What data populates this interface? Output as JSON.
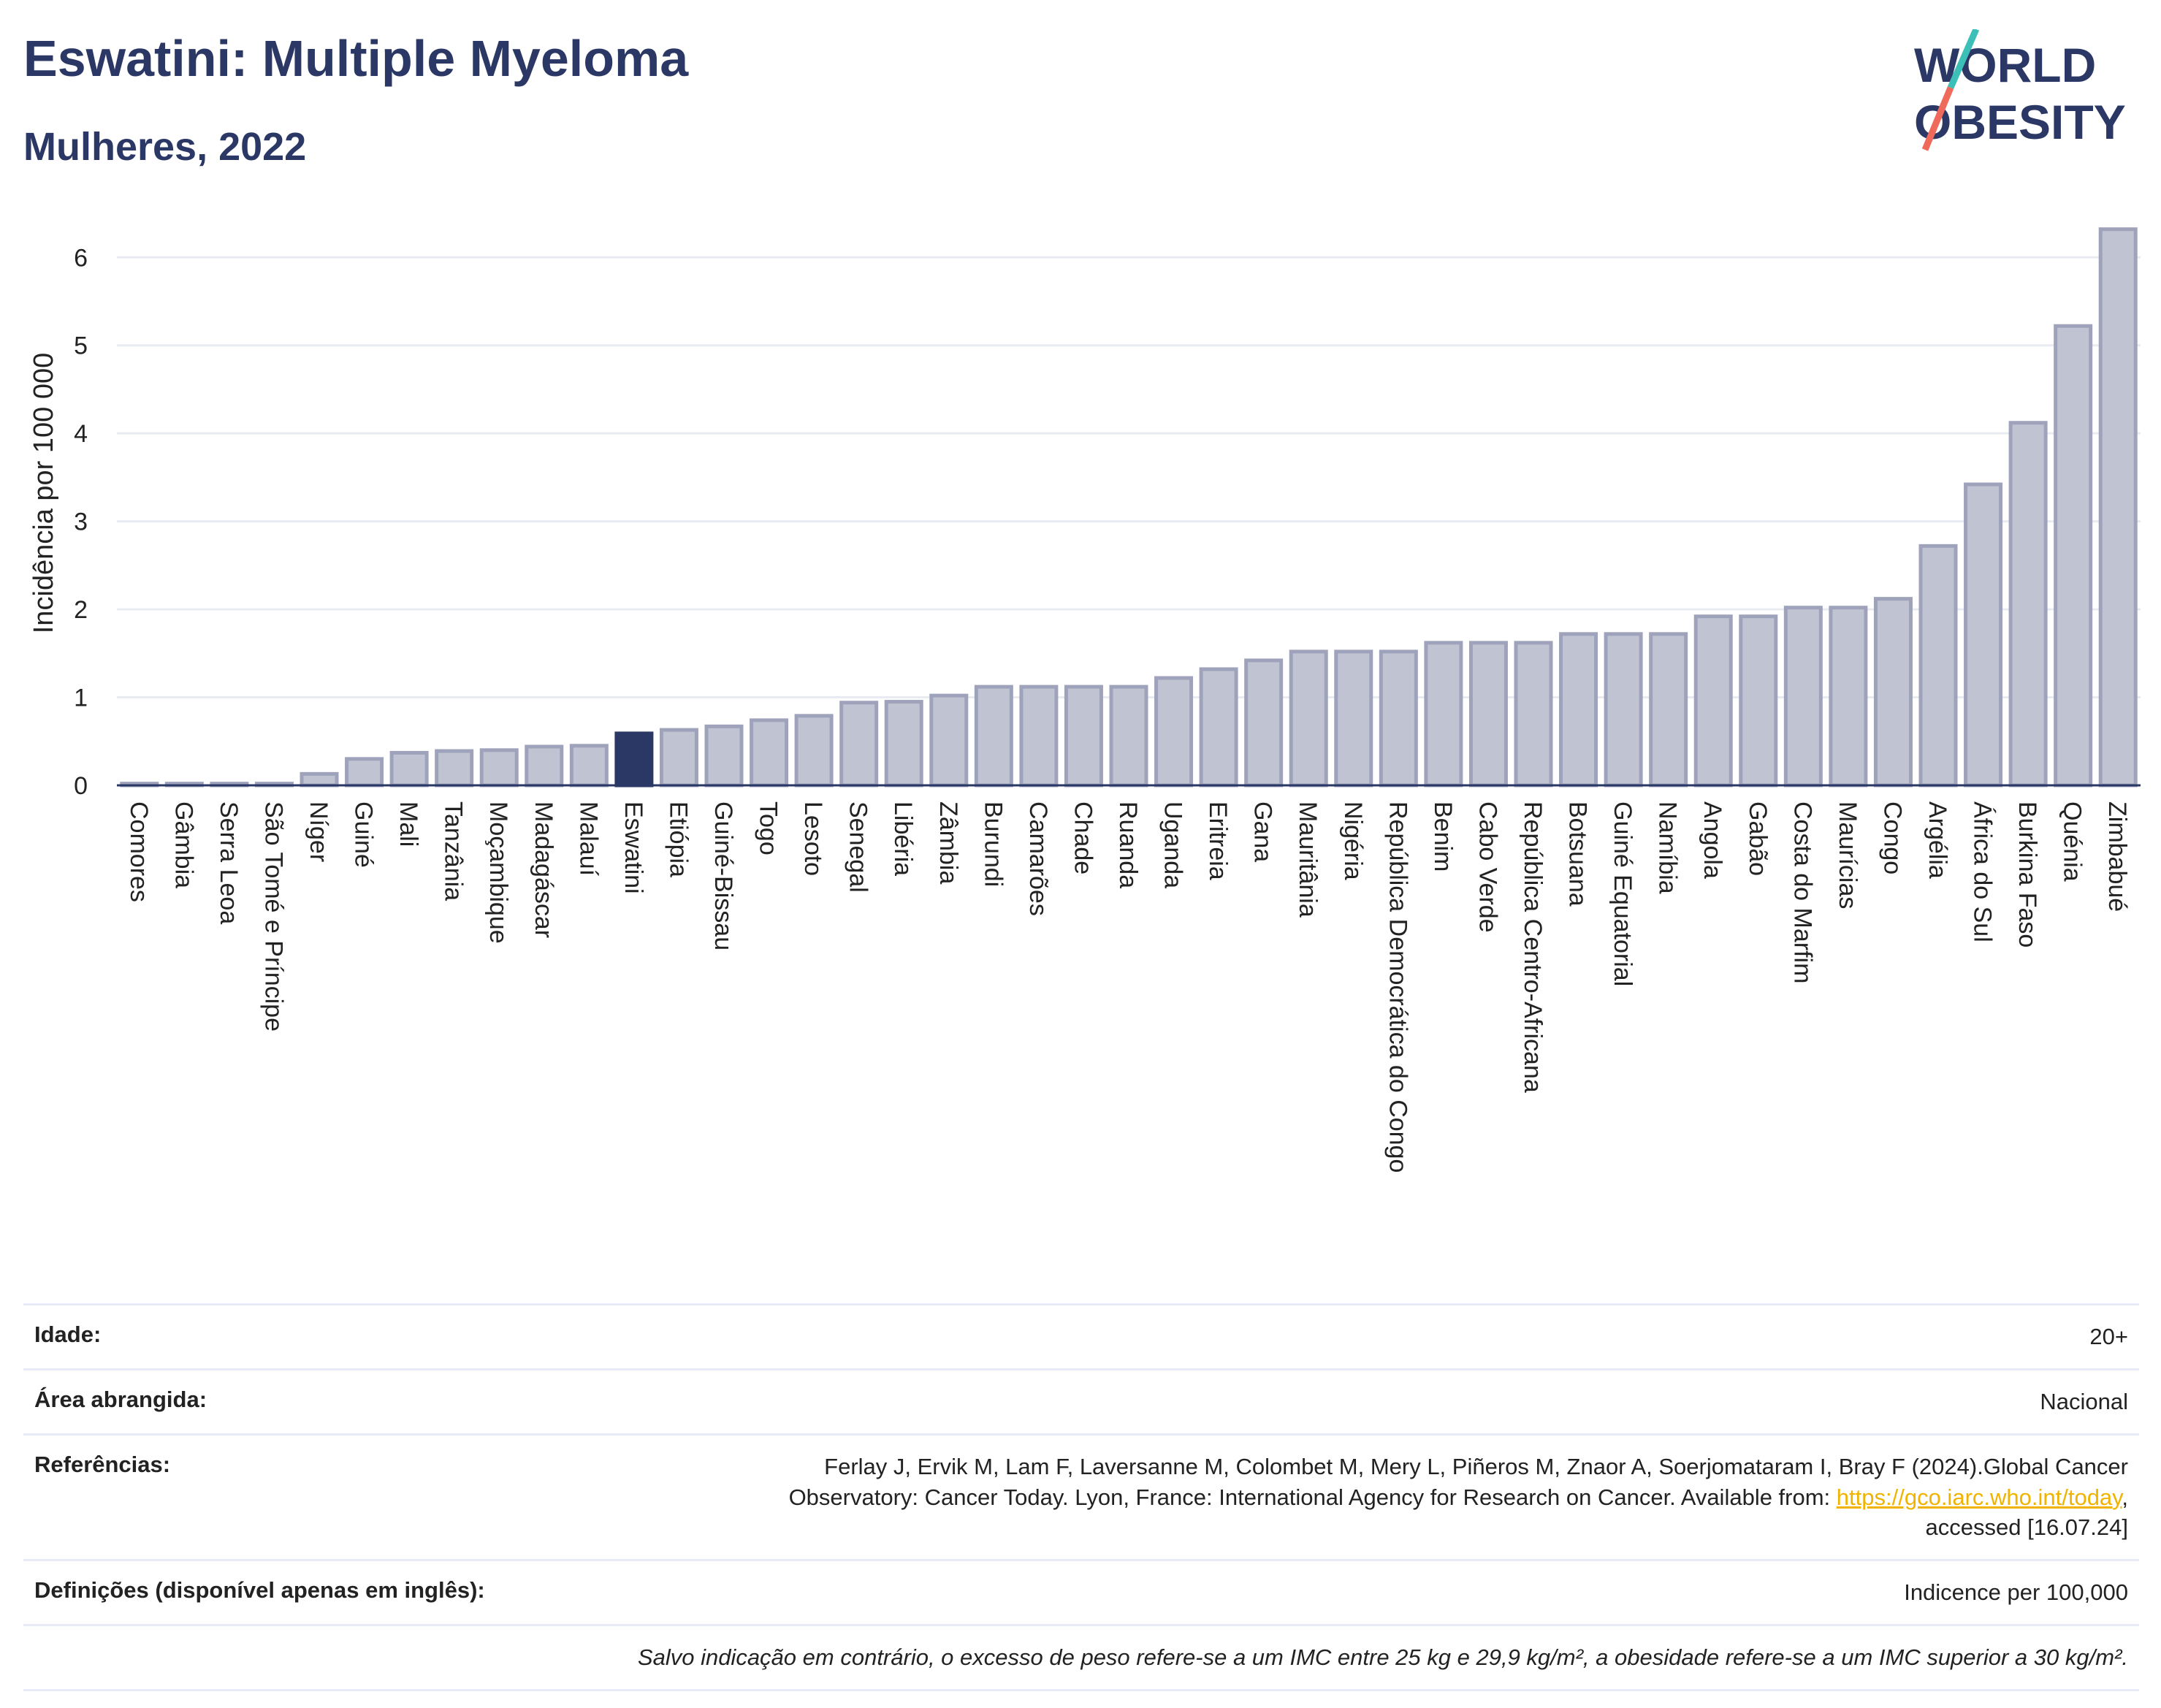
{
  "header": {
    "title": "Eswatini: Multiple Myeloma",
    "subtitle": "Mulheres, 2022",
    "logo_top": "WORLD",
    "logo_bottom": "OBESITY"
  },
  "colors": {
    "title": "#2b3866",
    "bar": "#bfc3d2",
    "bar_border": "#9ea3bb",
    "highlight": "#2b3866",
    "link": "#f0b400",
    "logo_teal": "#3bbfb6",
    "logo_coral": "#ef6a5a"
  },
  "chart_data": {
    "type": "bar",
    "ylabel": "Incidência por 100 000",
    "ylim": [
      0,
      6.6
    ],
    "yticks": [
      0,
      1,
      2,
      3,
      4,
      5,
      6
    ],
    "grid": true,
    "highlight": "Eswatini",
    "categories": [
      "Comores",
      "Gâmbia",
      "Serra Leoa",
      "São Tomé e Príncipe",
      "Níger",
      "Guiné",
      "Mali",
      "Tanzânia",
      "Moçambique",
      "Madagáscar",
      "Malauí",
      "Eswatini",
      "Etiópia",
      "Guiné-Bissau",
      "Togo",
      "Lesoto",
      "Senegal",
      "Libéria",
      "Zâmbia",
      "Burundi",
      "Camarões",
      "Chade",
      "Ruanda",
      "Uganda",
      "Eritreia",
      "Gana",
      "Mauritânia",
      "Nigéria",
      "República Democrática do Congo",
      "Benim",
      "Cabo Verde",
      "República Centro-Africana",
      "Botsuana",
      "Guiné Equatorial",
      "Namíbia",
      "Angola",
      "Gabão",
      "Costa do Marfim",
      "Maurícias",
      "Congo",
      "Argélia",
      "África do Sul",
      "Burkina Faso",
      "Quénia",
      "Zimbabué"
    ],
    "values": [
      0.02,
      0.02,
      0.02,
      0.02,
      0.13,
      0.3,
      0.37,
      0.39,
      0.4,
      0.44,
      0.45,
      0.59,
      0.63,
      0.67,
      0.74,
      0.79,
      0.94,
      0.95,
      1.02,
      1.12,
      1.12,
      1.12,
      1.12,
      1.22,
      1.32,
      1.42,
      1.52,
      1.52,
      1.52,
      1.62,
      1.62,
      1.62,
      1.72,
      1.72,
      1.72,
      1.92,
      1.92,
      2.02,
      2.02,
      2.12,
      2.72,
      3.42,
      4.12,
      5.22,
      6.32
    ]
  },
  "info": {
    "age_label": "Idade:",
    "age_value": "20+",
    "area_label": "Área abrangida:",
    "area_value": "Nacional",
    "ref_label": "Referências:",
    "ref_line1": "Ferlay J, Ervik M, Lam F, Laversanne M, Colombet M, Mery L, Piñeros M, Znaor A, Soerjomataram I, Bray F (2024).Global Cancer",
    "ref_line2": "Observatory: Cancer Today. Lyon, France: International Agency for Research on Cancer. Available from:",
    "ref_link": "https://gco.iarc.who.int/today",
    "ref_line3": "accessed [16.07.24]",
    "def_label": "Definições (disponível apenas em inglês):",
    "def_value": "Indicence per 100,000",
    "note": "Salvo indicação em contrário, o excesso de peso refere-se a um IMC entre 25 kg e 29,9 kg/m², a obesidade refere-se a um IMC superior a 30 kg/m²."
  }
}
